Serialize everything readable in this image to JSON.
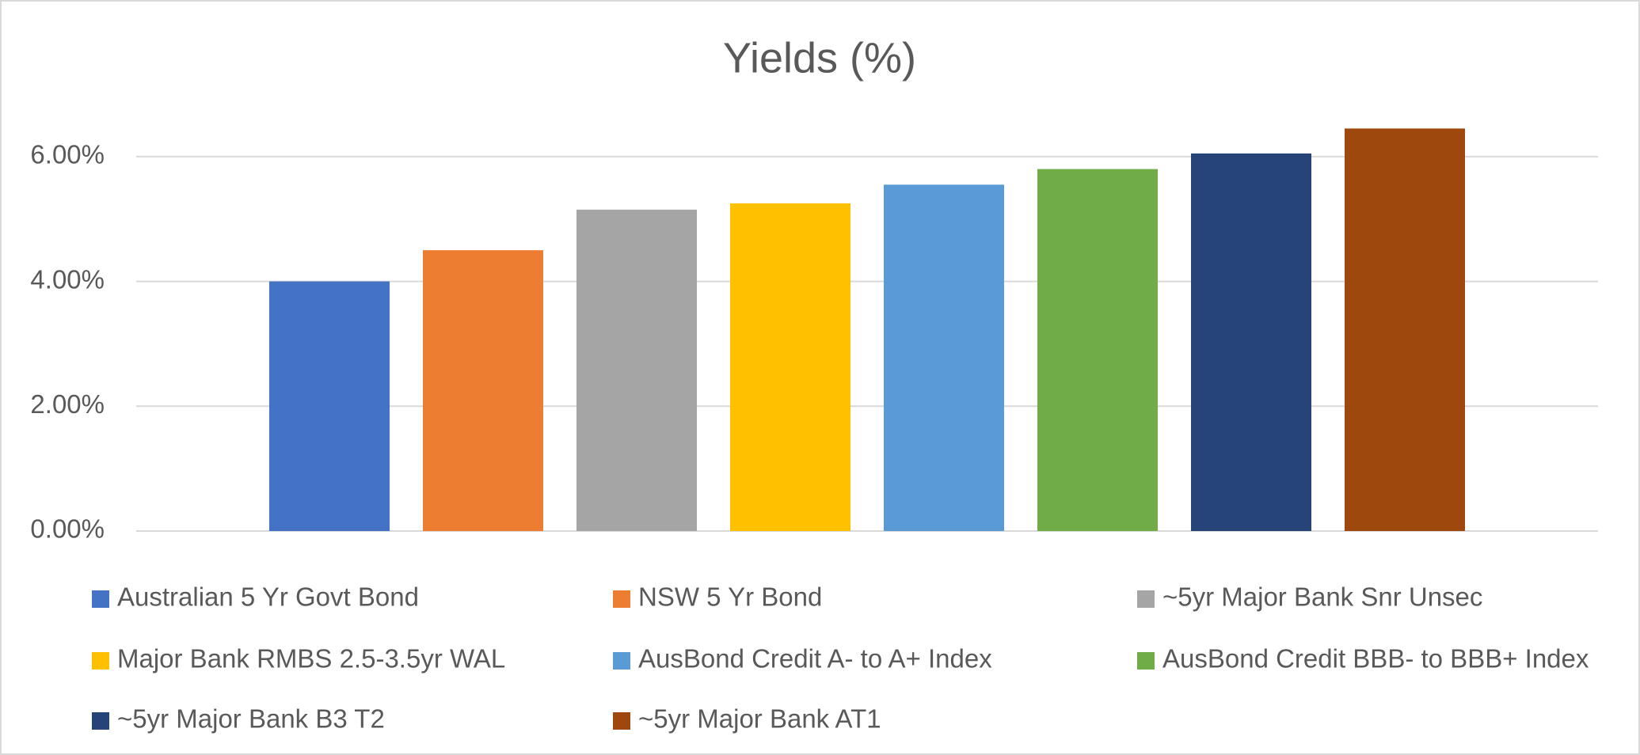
{
  "chart_data": {
    "type": "bar",
    "title": "Yields (%)",
    "series": [
      {
        "name": "Australian 5 Yr Govt Bond",
        "color": "#4472c4",
        "values": [
          4.0
        ]
      },
      {
        "name": "NSW 5 Yr Bond",
        "color": "#ed7d31",
        "values": [
          4.5
        ]
      },
      {
        "name": "~5yr Major Bank Snr Unsec",
        "color": "#a5a5a5",
        "values": [
          5.15
        ]
      },
      {
        "name": "Major Bank RMBS 2.5-3.5yr WAL",
        "color": "#ffc000",
        "values": [
          5.25
        ]
      },
      {
        "name": "AusBond Credit A- to A+ Index",
        "color": "#5b9bd5",
        "values": [
          5.55
        ]
      },
      {
        "name": "AusBond Credit BBB- to BBB+ Index",
        "color": "#70ad47",
        "values": [
          5.8
        ]
      },
      {
        "name": "~5yr Major Bank B3 T2",
        "color": "#264478",
        "values": [
          6.05
        ]
      },
      {
        "name": "~5yr Major Bank AT1",
        "color": "#9e480e",
        "values": [
          6.45
        ]
      }
    ],
    "ylim": [
      0,
      7
    ],
    "yticks": [
      {
        "value": 0,
        "label": "0.00%"
      },
      {
        "value": 2,
        "label": "2.00%"
      },
      {
        "value": 4,
        "label": "4.00%"
      },
      {
        "value": 6,
        "label": "6.00%"
      }
    ],
    "grid": true,
    "legend": "bottom"
  }
}
